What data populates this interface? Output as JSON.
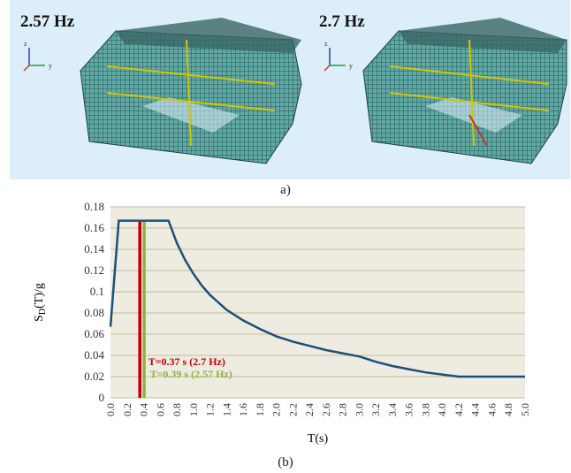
{
  "panel_a": {
    "caption": "a)",
    "modes": [
      {
        "label": "2.57 Hz"
      },
      {
        "label": "2.7 Hz"
      }
    ],
    "axis_triad_labels": [
      "z",
      "y"
    ],
    "colors": {
      "background": "#dceefa",
      "mesh": "#2e7d7a",
      "highlight": "#d4c400"
    }
  },
  "panel_b": {
    "caption": "(b)"
  },
  "chart_data": {
    "type": "line",
    "xlabel": "T(s)",
    "ylabel": "S_D(T)/g",
    "xlim": [
      0,
      5.0
    ],
    "ylim": [
      0,
      0.18
    ],
    "grid": true,
    "x_ticks": [
      "0.0",
      "0.2",
      "0.4",
      "0.6",
      "0.8",
      "1.0",
      "1.2",
      "1.4",
      "1.6",
      "1.8",
      "2.0",
      "2.2",
      "2.4",
      "2.6",
      "2.8",
      "3.0",
      "3.2",
      "3.4",
      "3.6",
      "3.8",
      "4.0",
      "4.2",
      "4.4",
      "4.6",
      "4.8",
      "5.0"
    ],
    "y_ticks": [
      "0",
      "0.02",
      "0.04",
      "0.06",
      "0.08",
      "0.1",
      "0.12",
      "0.14",
      "0.16",
      "0.18"
    ],
    "series": [
      {
        "color": "#1f4e79",
        "points": [
          [
            0.0,
            0.067
          ],
          [
            0.1,
            0.167
          ],
          [
            0.7,
            0.167
          ],
          [
            0.8,
            0.146
          ],
          [
            0.9,
            0.13
          ],
          [
            1.0,
            0.117
          ],
          [
            1.1,
            0.106
          ],
          [
            1.2,
            0.097
          ],
          [
            1.3,
            0.09
          ],
          [
            1.4,
            0.083
          ],
          [
            1.6,
            0.073
          ],
          [
            1.8,
            0.065
          ],
          [
            2.0,
            0.058
          ],
          [
            2.2,
            0.053
          ],
          [
            2.4,
            0.049
          ],
          [
            2.6,
            0.045
          ],
          [
            2.8,
            0.042
          ],
          [
            3.0,
            0.039
          ],
          [
            3.2,
            0.034
          ],
          [
            3.4,
            0.03
          ],
          [
            3.6,
            0.027
          ],
          [
            3.8,
            0.024
          ],
          [
            4.0,
            0.022
          ],
          [
            4.2,
            0.02
          ],
          [
            5.0,
            0.02
          ]
        ]
      }
    ],
    "markers": [
      {
        "x": 0.37,
        "label": "T=0.37 s (2.7 Hz)",
        "color": "#c00000"
      },
      {
        "x": 0.39,
        "label": "T=0.39 s (2.57 Hz)",
        "color": "#8fb04a"
      }
    ],
    "plot_background": "#eeece1",
    "grid_color": "#c4bd97"
  }
}
